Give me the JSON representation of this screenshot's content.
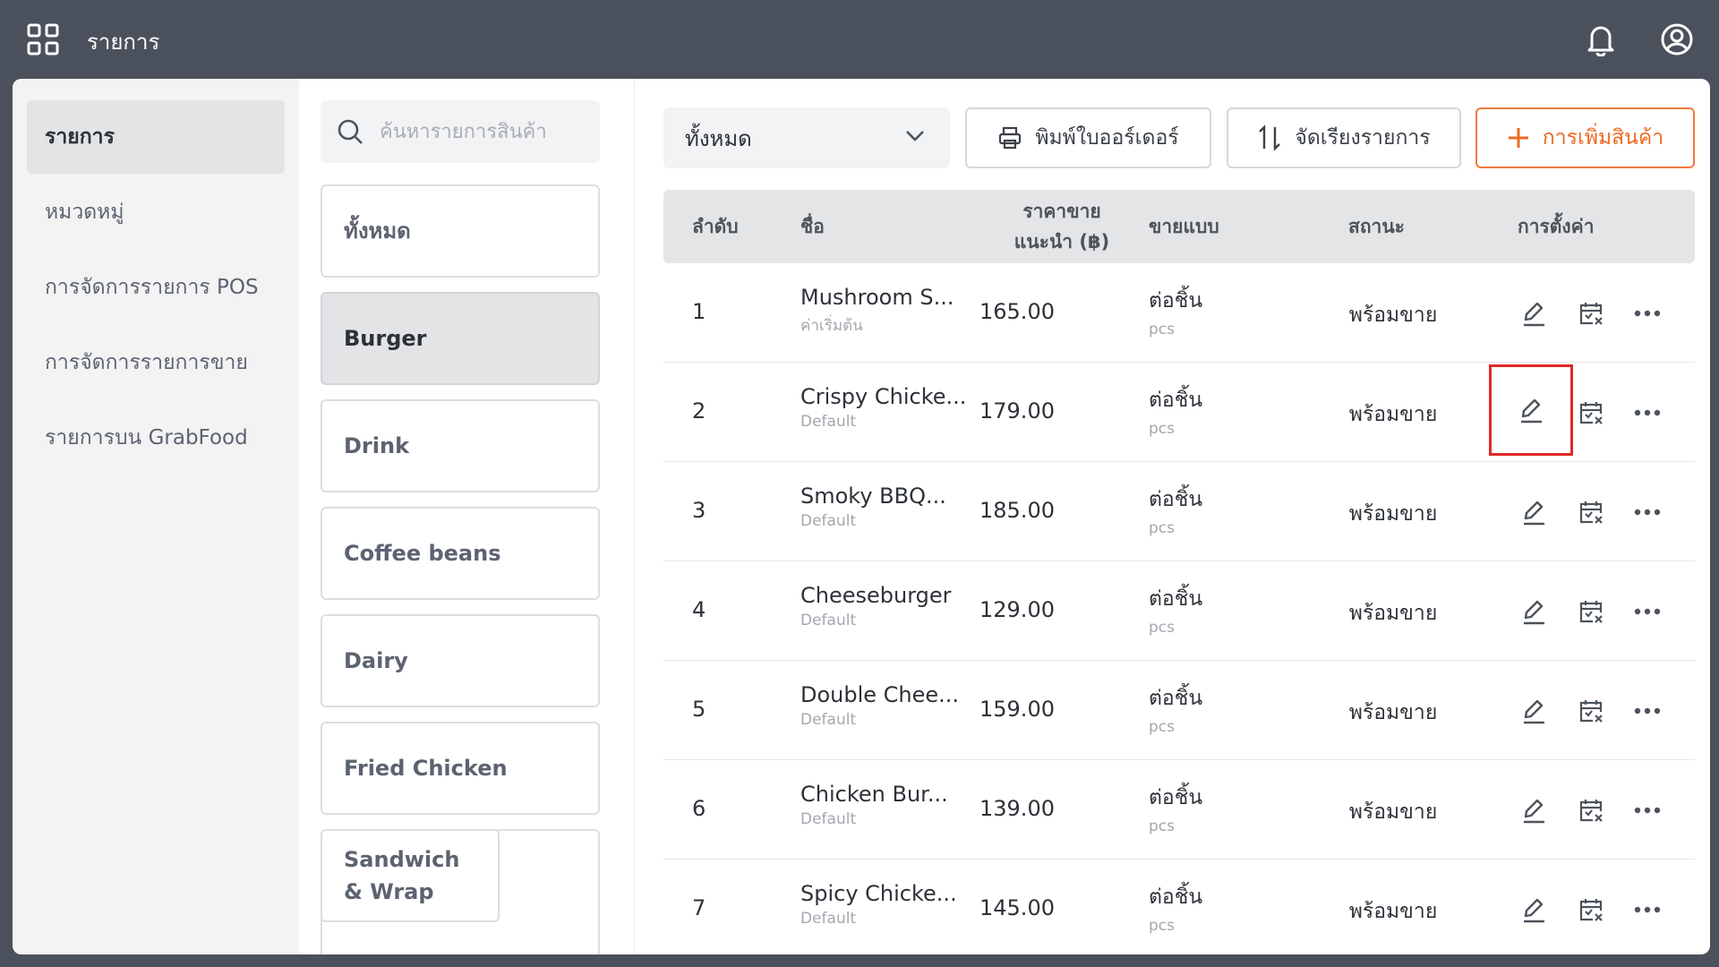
{
  "header": {
    "title": "รายการ"
  },
  "sidebar": {
    "items": [
      {
        "label": "รายการ"
      },
      {
        "label": "หมวดหมู่"
      },
      {
        "label": "การจัดการรายการ POS"
      },
      {
        "label": "การจัดการรายการขาย"
      },
      {
        "label": "รายการบน GrabFood"
      }
    ]
  },
  "categories": {
    "search_placeholder": "ค้นหารายการสินค้า",
    "items": [
      {
        "label": "ทั้งหมด"
      },
      {
        "label": "Burger"
      },
      {
        "label": "Drink"
      },
      {
        "label": "Coffee beans"
      },
      {
        "label": "Dairy"
      },
      {
        "label": "Fried Chicken"
      },
      {
        "label": "Sandwich & Wrap"
      }
    ]
  },
  "toolbar": {
    "filter_value": "ทั้งหมด",
    "print_label": "พิมพ์ใบออร์เดอร์",
    "sort_label": "จัดเรียงรายการ",
    "add_label": "การเพิ่มสินค้า"
  },
  "table": {
    "headers": {
      "index": "ลำดับ",
      "name": "ชื่อ",
      "price_line1": "ราคาขาย",
      "price_line2": "แนะนำ (฿)",
      "sell_type": "ขายแบบ",
      "status": "สถานะ",
      "settings": "การตั้งค่า"
    },
    "rows": [
      {
        "index": "1",
        "name": "Mushroom S...",
        "variant": "ค่าเริ่มต้น",
        "price": "165.00",
        "unit": "ต่อชิ้น",
        "unit_sub": "pcs",
        "status": "พร้อมขาย"
      },
      {
        "index": "2",
        "name": "Crispy Chicke...",
        "variant": "Default",
        "price": "179.00",
        "unit": "ต่อชิ้น",
        "unit_sub": "pcs",
        "status": "พร้อมขาย"
      },
      {
        "index": "3",
        "name": "Smoky BBQ...",
        "variant": "Default",
        "price": "185.00",
        "unit": "ต่อชิ้น",
        "unit_sub": "pcs",
        "status": "พร้อมขาย"
      },
      {
        "index": "4",
        "name": "Cheeseburger",
        "variant": "Default",
        "price": "129.00",
        "unit": "ต่อชิ้น",
        "unit_sub": "pcs",
        "status": "พร้อมขาย"
      },
      {
        "index": "5",
        "name": "Double Chee...",
        "variant": "Default",
        "price": "159.00",
        "unit": "ต่อชิ้น",
        "unit_sub": "pcs",
        "status": "พร้อมขาย"
      },
      {
        "index": "6",
        "name": "Chicken Bur...",
        "variant": "Default",
        "price": "139.00",
        "unit": "ต่อชิ้น",
        "unit_sub": "pcs",
        "status": "พร้อมขาย"
      },
      {
        "index": "7",
        "name": "Spicy Chicke...",
        "variant": "Default",
        "price": "145.00",
        "unit": "ต่อชิ้น",
        "unit_sub": "pcs",
        "status": "พร้อมขาย"
      }
    ]
  },
  "icons": {
    "apps": "grid-icon",
    "notifications": "bell-icon",
    "account": "user-circle-icon",
    "search": "search-icon",
    "dropdown": "chevron-down-icon",
    "print": "printer-icon",
    "sort": "sort-icon",
    "add": "plus-icon",
    "edit": "pencil-icon",
    "disable": "calendar-x-icon",
    "more": "more-horizontal-icon"
  },
  "colors": {
    "topbar": "#4a515c",
    "accent": "#ec6a24",
    "highlight": "#e02828"
  }
}
